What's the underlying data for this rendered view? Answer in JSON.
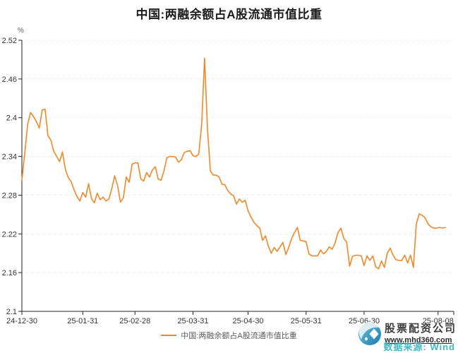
{
  "title": "中国:两融余额占A股流通市值比重",
  "y_axis_unit": "%",
  "legend": {
    "label": "中国:两融余额占A股流通市值比重",
    "line_color": "#F0882B"
  },
  "watermark": {
    "company": "股票配资公司",
    "website": "www.mhd360.com",
    "source": "数据来源: Wind",
    "accent_color": "#35b3bd"
  },
  "colors": {
    "line": "#F0882B",
    "axis": "#222222",
    "grid": "#d9d9d9",
    "tick_label": "#333333",
    "title": "#1c1c1c"
  },
  "chart_data": {
    "type": "line",
    "title": "中国:两融余额占A股流通市值比重",
    "ylabel": "%",
    "ylim": [
      2.1,
      2.52
    ],
    "y_ticks": [
      2.52,
      2.46,
      2.4,
      2.34,
      2.28,
      2.22,
      2.16,
      2.1
    ],
    "y_tick_labels": [
      "2.52",
      "2.46",
      "2.4",
      "2.34",
      "2.28",
      "2.22",
      "2.16",
      "2.1"
    ],
    "grid": "horizontal-dotted",
    "legend_position": "bottom-center",
    "x_ticks": [
      {
        "label": "24-12-30",
        "day": 0
      },
      {
        "label": "25-01-31",
        "day": 21
      },
      {
        "label": "25-02-28",
        "day": 39
      },
      {
        "label": "25-03-31",
        "day": 59
      },
      {
        "label": "25-04-30",
        "day": 78
      },
      {
        "label": "25-05-31",
        "day": 98
      },
      {
        "label": "25-06-30",
        "day": 118
      },
      {
        "label": "25-08-08",
        "day": 143.5
      }
    ],
    "series": [
      {
        "name": "中国:两融余额占A股流通市值比重",
        "color": "#F0882B",
        "values": [
          2.303,
          2.345,
          2.39,
          2.408,
          2.402,
          2.394,
          2.384,
          2.412,
          2.413,
          2.372,
          2.365,
          2.348,
          2.34,
          2.332,
          2.347,
          2.32,
          2.307,
          2.301,
          2.288,
          2.278,
          2.271,
          2.284,
          2.277,
          2.298,
          2.275,
          2.268,
          2.283,
          2.273,
          2.277,
          2.271,
          2.274,
          2.29,
          2.31,
          2.295,
          2.269,
          2.276,
          2.308,
          2.3,
          2.328,
          2.33,
          2.33,
          2.305,
          2.302,
          2.315,
          2.308,
          2.319,
          2.324,
          2.305,
          2.303,
          2.318,
          2.338,
          2.34,
          2.34,
          2.339,
          2.331,
          2.335,
          2.346,
          2.348,
          2.349,
          2.341,
          2.34,
          2.344,
          2.39,
          2.492,
          2.383,
          2.318,
          2.311,
          2.311,
          2.308,
          2.297,
          2.296,
          2.287,
          2.282,
          2.279,
          2.266,
          2.274,
          2.269,
          2.272,
          2.256,
          2.246,
          2.238,
          2.233,
          2.229,
          2.21,
          2.217,
          2.201,
          2.19,
          2.199,
          2.193,
          2.2,
          2.207,
          2.188,
          2.199,
          2.213,
          2.222,
          2.23,
          2.21,
          2.209,
          2.208,
          2.189,
          2.186,
          2.186,
          2.186,
          2.195,
          2.189,
          2.193,
          2.2,
          2.196,
          2.206,
          2.222,
          2.229,
          2.213,
          2.207,
          2.17,
          2.185,
          2.187,
          2.187,
          2.186,
          2.171,
          2.186,
          2.179,
          2.186,
          2.169,
          2.166,
          2.178,
          2.168,
          2.19,
          2.198,
          2.187,
          2.18,
          2.179,
          2.179,
          2.187,
          2.175,
          2.187,
          2.168,
          2.235,
          2.251,
          2.249,
          2.245,
          2.236,
          2.231,
          2.229,
          2.229,
          2.23,
          2.229,
          2.23
        ]
      }
    ]
  }
}
